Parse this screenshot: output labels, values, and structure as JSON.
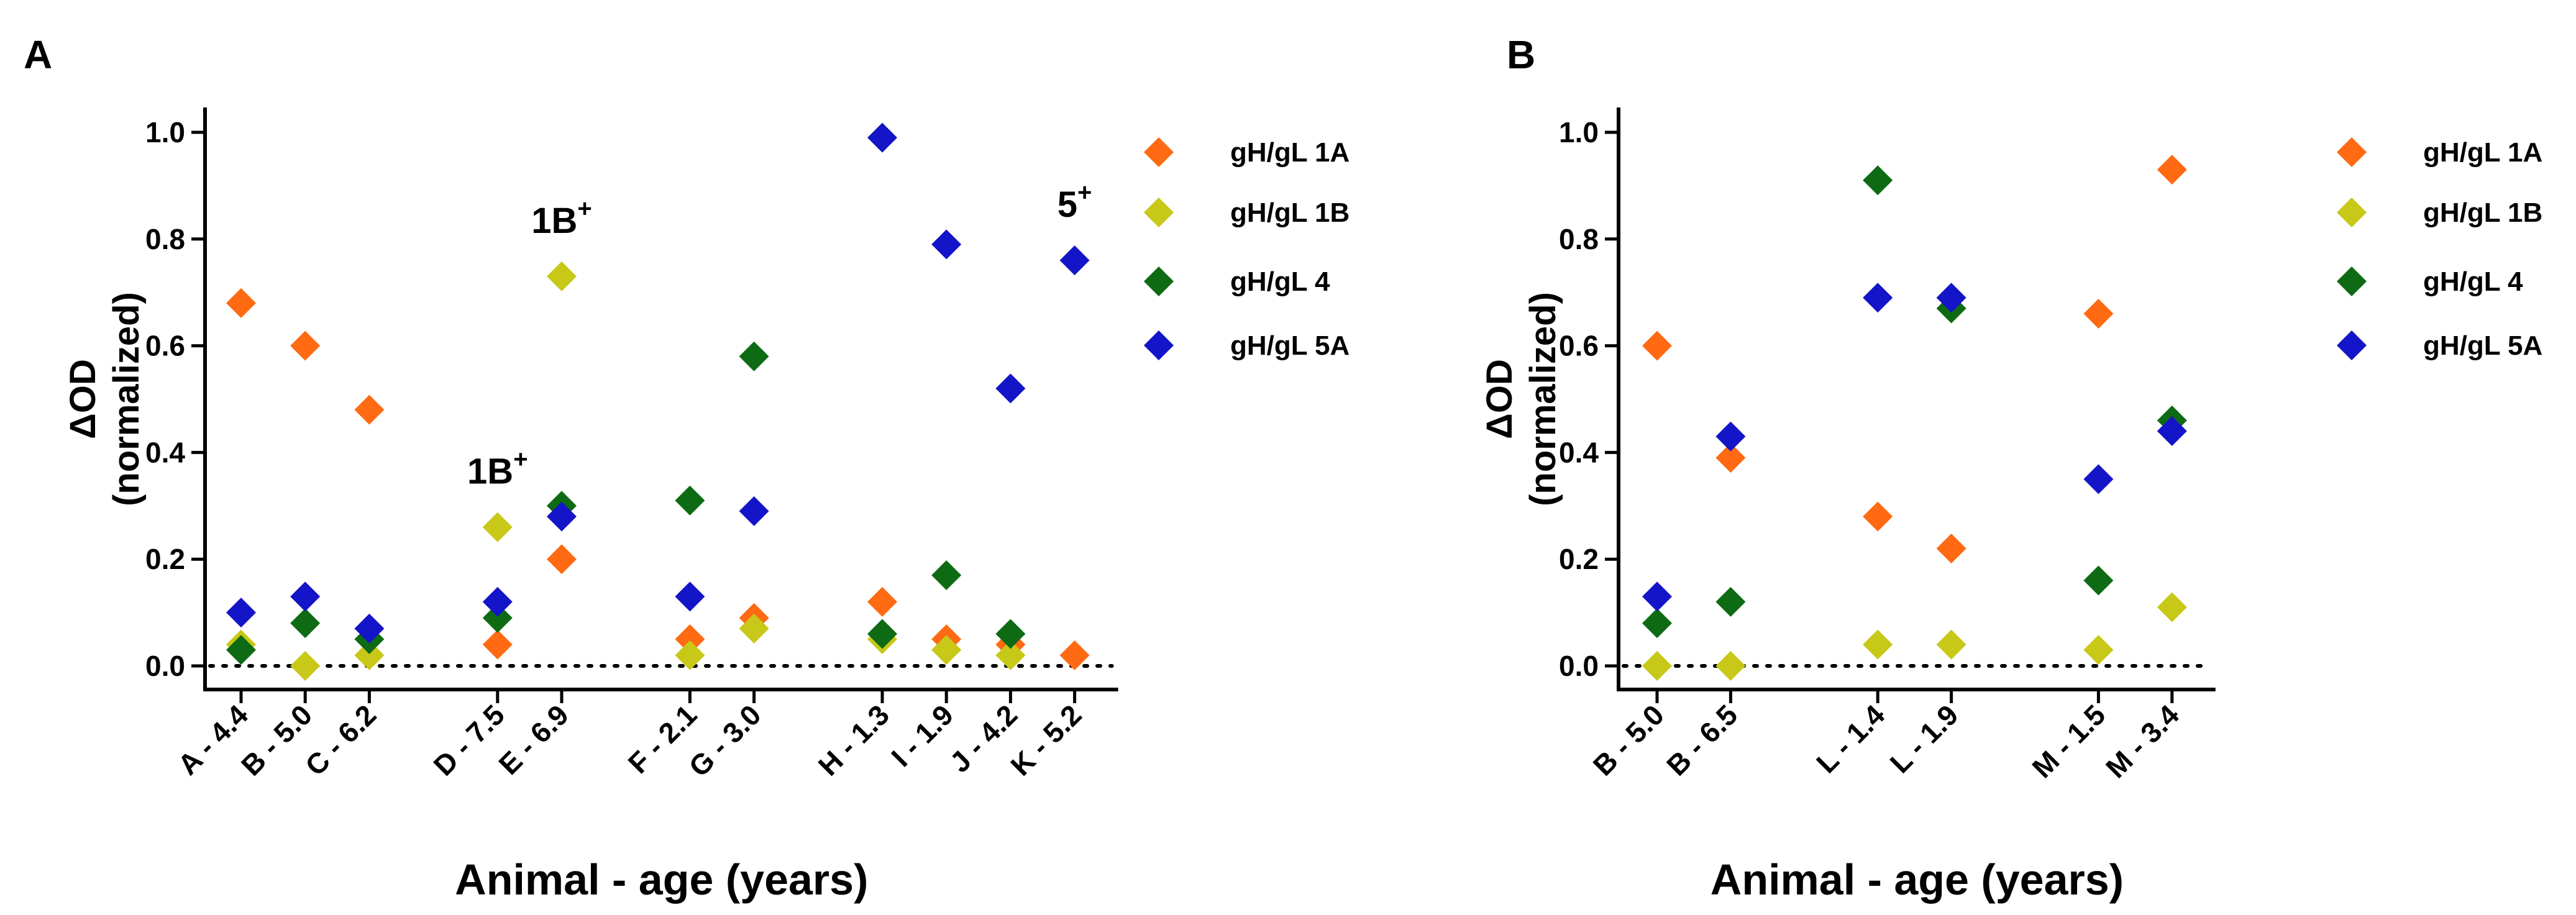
{
  "colors": {
    "gH/gL 1A": "#ff6a13",
    "gH/gL 1B": "#c8c818",
    "gH/gL 4": "#0e6b14",
    "gH/gL 5A": "#1414c8"
  },
  "chart_data": [
    {
      "panel": "A",
      "type": "scatter",
      "xlabel": "Animal - age (years)",
      "ylabel_line1": "ΔOD",
      "ylabel_line2": "(normalized)",
      "ylim": [
        0.0,
        1.0
      ],
      "yticks": [
        "0.0",
        "0.2",
        "0.4",
        "0.6",
        "0.8",
        "1.0"
      ],
      "baseline": 0.0,
      "legend": "right",
      "categories": [
        "A - 4.4",
        "B - 5.0",
        "C - 6.2",
        "D - 7.5",
        "E - 6.9",
        "F - 2.1",
        "G - 3.0",
        "H - 1.3",
        "I - 1.9",
        "J - 4.2",
        "K - 5.2"
      ],
      "category_positions": [
        1,
        2,
        3,
        5,
        6,
        8,
        9,
        11,
        12,
        13,
        14
      ],
      "series": [
        {
          "name": "gH/gL 1A",
          "values": [
            0.68,
            0.6,
            0.48,
            0.04,
            0.2,
            0.05,
            0.09,
            0.12,
            0.05,
            0.04,
            0.02
          ]
        },
        {
          "name": "gH/gL 1B",
          "values": [
            0.04,
            0.0,
            0.02,
            0.26,
            0.73,
            0.02,
            0.07,
            0.05,
            0.03,
            0.02,
            null
          ]
        },
        {
          "name": "gH/gL 4",
          "values": [
            0.03,
            0.08,
            0.05,
            0.09,
            0.3,
            0.31,
            0.58,
            0.06,
            0.17,
            0.06,
            null
          ]
        },
        {
          "name": "gH/gL 5A",
          "values": [
            0.1,
            0.13,
            0.07,
            0.12,
            0.28,
            0.13,
            0.29,
            0.99,
            0.79,
            0.52,
            0.76
          ]
        }
      ],
      "annotations": [
        {
          "main": "1B",
          "sup": "+",
          "category_index": 3
        },
        {
          "main": "1B",
          "sup": "+",
          "category_index": 4
        },
        {
          "main": "5",
          "sup": "+",
          "category_index": 10
        }
      ]
    },
    {
      "panel": "B",
      "type": "scatter",
      "xlabel": "Animal - age (years)",
      "ylabel_line1": "ΔOD",
      "ylabel_line2": "(normalized)",
      "ylim": [
        0.0,
        1.0
      ],
      "yticks": [
        "0.0",
        "0.2",
        "0.4",
        "0.6",
        "0.8",
        "1.0"
      ],
      "baseline": 0.0,
      "legend": "right",
      "categories": [
        "B - 5.0",
        "B - 6.5",
        "L - 1.4",
        "L - 1.9",
        "M - 1.5",
        "M - 3.4"
      ],
      "category_positions": [
        1,
        2,
        4,
        5,
        7,
        8
      ],
      "series": [
        {
          "name": "gH/gL 1A",
          "values": [
            0.6,
            0.39,
            0.28,
            0.22,
            0.66,
            0.93
          ]
        },
        {
          "name": "gH/gL 1B",
          "values": [
            0.0,
            0.0,
            0.04,
            0.04,
            0.03,
            0.11
          ]
        },
        {
          "name": "gH/gL 4",
          "values": [
            0.08,
            0.12,
            0.91,
            0.67,
            0.16,
            0.46
          ]
        },
        {
          "name": "gH/gL 5A",
          "values": [
            0.13,
            0.43,
            0.69,
            0.69,
            0.35,
            0.44
          ]
        }
      ],
      "annotations": []
    }
  ]
}
